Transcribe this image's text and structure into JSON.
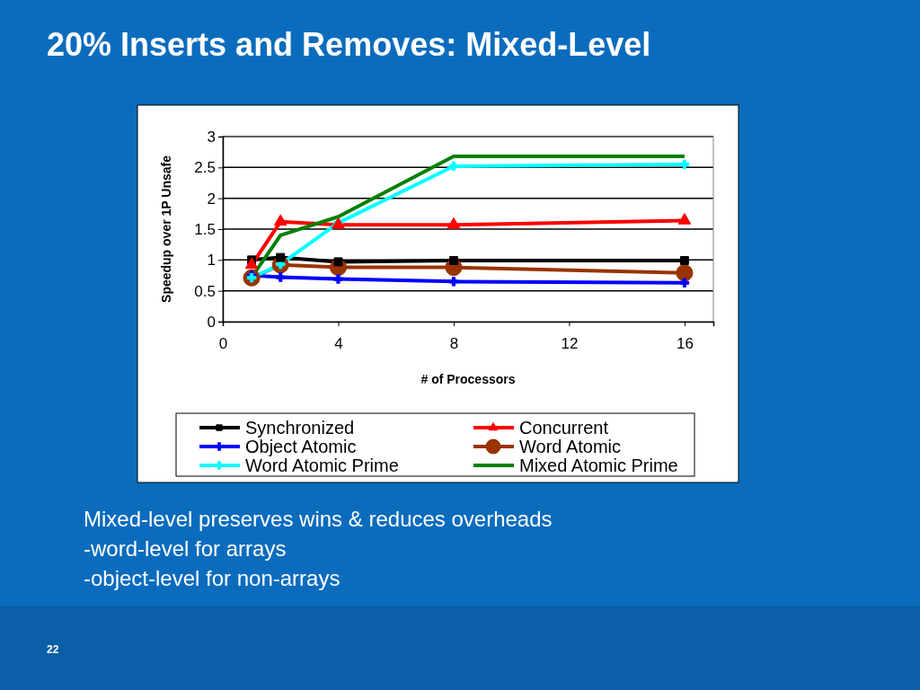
{
  "chart_data": {
    "type": "line",
    "title": "20% Inserts and Removes: Mixed-Level",
    "xlabel": "# of Processors",
    "ylabel": "Speedup over 1P Unsafe",
    "x": [
      1,
      2,
      4,
      8,
      16
    ],
    "series": [
      {
        "name": "Synchronized",
        "color": "#000000",
        "marker": "square",
        "values": [
          1.0,
          1.04,
          0.97,
          0.99,
          0.99
        ]
      },
      {
        "name": "Concurrent",
        "color": "#ff0000",
        "marker": "triangle",
        "values": [
          0.92,
          1.62,
          1.57,
          1.57,
          1.64
        ]
      },
      {
        "name": "Object Atomic",
        "color": "#0000ff",
        "marker": "cross",
        "values": [
          0.75,
          0.72,
          0.69,
          0.65,
          0.63
        ]
      },
      {
        "name": "Word Atomic",
        "color": "#993300",
        "marker": "circle",
        "values": [
          0.71,
          0.92,
          0.88,
          0.88,
          0.79
        ]
      },
      {
        "name": "Word Atomic Prime",
        "color": "#00ffff",
        "marker": "cross",
        "values": [
          0.71,
          0.93,
          1.6,
          2.52,
          2.55
        ]
      },
      {
        "name": "Mixed Atomic Prime",
        "color": "#008000",
        "marker": "none",
        "values": [
          0.72,
          1.4,
          1.7,
          2.68,
          2.68
        ]
      }
    ],
    "xlim": [
      0,
      17
    ],
    "xticks": [
      0,
      4,
      8,
      12,
      16
    ],
    "ylim": [
      0,
      3
    ],
    "yticks": [
      0,
      0.5,
      1,
      1.5,
      2,
      2.5,
      3
    ],
    "grid": "y",
    "legend": "bottom",
    "annotations": [
      "Mixed-level preserves wins & reduces overheads",
      "-word-level for arrays",
      "-object-level for non-arrays",
      "22"
    ]
  }
}
